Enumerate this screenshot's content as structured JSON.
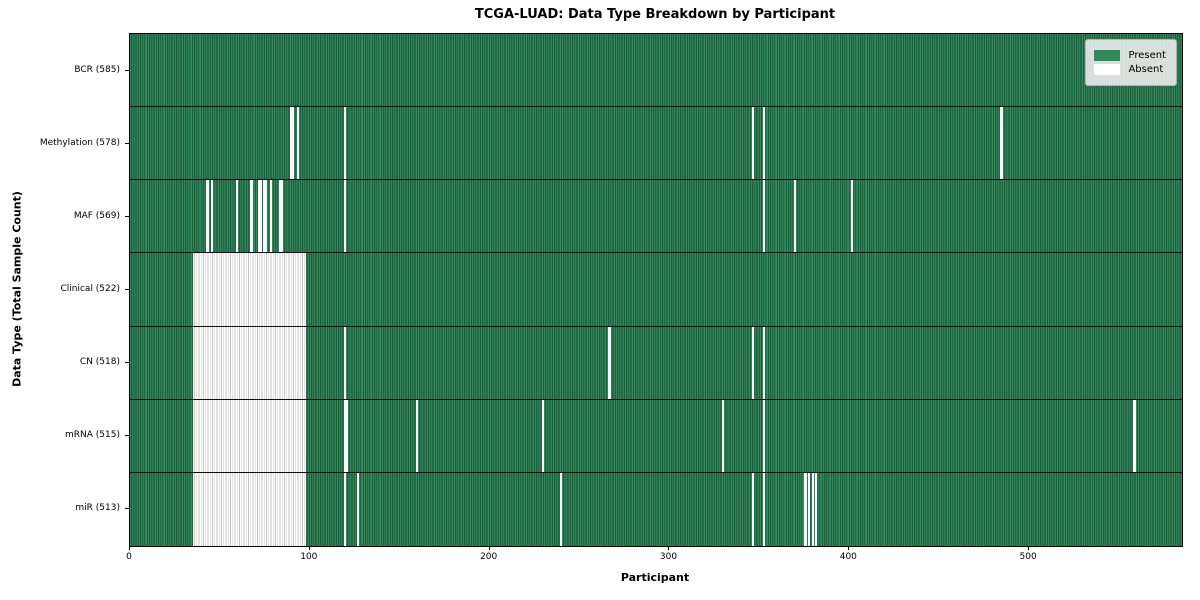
{
  "title": "TCGA-LUAD: Data Type Breakdown by Participant",
  "xlabel": "Participant",
  "ylabel": "Data Type (Total Sample Count)",
  "legend": {
    "present_label": "Present",
    "absent_label": "Absent"
  },
  "colors": {
    "present": "#2e8b57",
    "present_edge": "#174a2e",
    "absent": "#ffffff",
    "absent_edge": "#c4c4c4",
    "legend_bg": "#e8e8e8"
  },
  "chart_data": {
    "type": "heatmap",
    "title": "TCGA-LUAD: Data Type Breakdown by Participant",
    "xlabel": "Participant",
    "ylabel": "Data Type (Total Sample Count)",
    "legend_entries": [
      {
        "label": "Present",
        "color": "#2e8b57"
      },
      {
        "label": "Absent",
        "color": "#ffffff"
      }
    ],
    "legend_position": "upper right",
    "grid": false,
    "n_participants": 585,
    "x_axis": {
      "min": 0,
      "max": 585,
      "ticks": [
        0,
        100,
        200,
        300,
        400,
        500
      ]
    },
    "rows": [
      {
        "name": "BCR",
        "label": "BCR (585)",
        "present_count": 585,
        "absent_range": null,
        "absent_participants": []
      },
      {
        "name": "Methylation",
        "label": "Methylation (578)",
        "present_count": 578,
        "absent_range": null,
        "absent_participants": [
          89,
          90,
          93,
          119,
          346,
          352,
          484
        ]
      },
      {
        "name": "MAF",
        "label": "MAF (569)",
        "present_count": 569,
        "absent_range": null,
        "absent_participants": [
          42,
          43,
          45,
          59,
          67,
          71,
          72,
          74,
          75,
          78,
          83,
          84,
          119,
          352,
          369,
          401
        ]
      },
      {
        "name": "Clinical",
        "label": "Clinical (522)",
        "present_count": 522,
        "absent_range": [
          35,
          97
        ],
        "absent_participants": []
      },
      {
        "name": "CN",
        "label": "CN (518)",
        "present_count": 518,
        "absent_range": [
          35,
          97
        ],
        "absent_participants": [
          119,
          266,
          346,
          352
        ]
      },
      {
        "name": "mRNA",
        "label": "mRNA (515)",
        "present_count": 515,
        "absent_range": [
          35,
          97
        ],
        "absent_participants": [
          119,
          120,
          159,
          229,
          329,
          352,
          558
        ]
      },
      {
        "name": "miR",
        "label": "miR (513)",
        "present_count": 513,
        "absent_range": [
          35,
          97
        ],
        "absent_participants": [
          119,
          126,
          239,
          346,
          352,
          375,
          377,
          379,
          381
        ]
      }
    ]
  }
}
